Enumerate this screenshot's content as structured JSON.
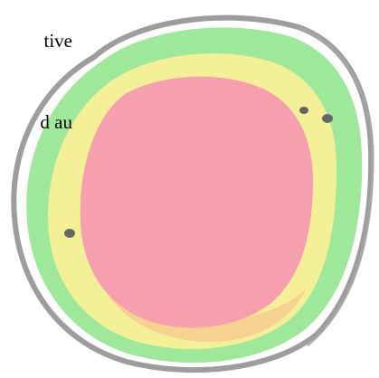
{
  "text_fragment": {
    "lines": [
      "tive",
      "d au"
    ]
  },
  "diagram": {
    "shape": "concentric-zones",
    "zones": [
      {
        "name": "outer-zone",
        "color": "#9ee89a"
      },
      {
        "name": "middle-zone",
        "color": "#f4f097"
      },
      {
        "name": "inner-zone",
        "color": "#f69fae"
      }
    ],
    "outline_color": "#8c8c8c",
    "marker_color": "#666666",
    "marker_count": 3
  }
}
